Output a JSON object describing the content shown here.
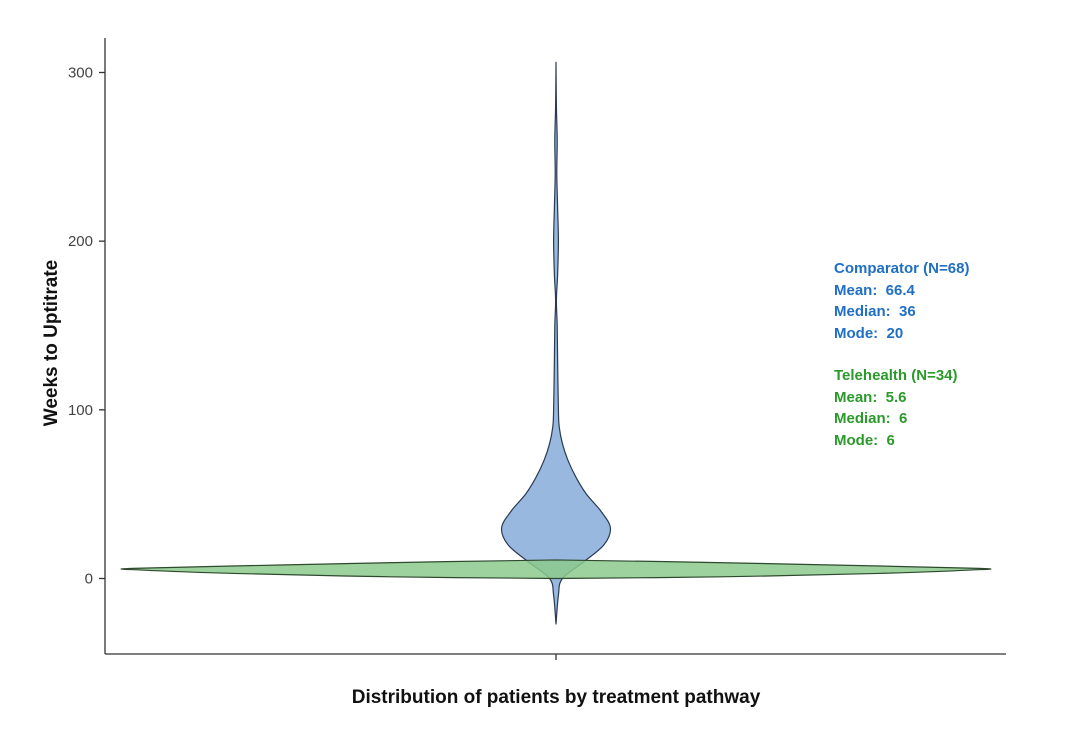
{
  "chart_data": {
    "type": "violin",
    "xlabel": "Distribution of patients by treatment pathway",
    "ylabel": "Weeks to Uptitrate",
    "ylim": [
      -40,
      325
    ],
    "yticks": [
      0,
      100,
      200,
      300
    ],
    "grid": false,
    "series": [
      {
        "name": "Comparator",
        "n": 68,
        "color": "#92b4dd",
        "stroke": "#2a3a52",
        "range": [
          -27,
          306
        ],
        "density_profile": [
          {
            "y": -27,
            "w": 0.0
          },
          {
            "y": -10,
            "w": 0.3
          },
          {
            "y": 0,
            "w": 0.8
          },
          {
            "y": 10,
            "w": 3.5
          },
          {
            "y": 20,
            "w": 6.0
          },
          {
            "y": 30,
            "w": 6.8
          },
          {
            "y": 40,
            "w": 5.6
          },
          {
            "y": 50,
            "w": 3.8
          },
          {
            "y": 60,
            "w": 2.5
          },
          {
            "y": 70,
            "w": 1.5
          },
          {
            "y": 80,
            "w": 0.8
          },
          {
            "y": 90,
            "w": 0.4
          },
          {
            "y": 100,
            "w": 0.3
          },
          {
            "y": 130,
            "w": 0.2
          },
          {
            "y": 150,
            "w": 0.15
          },
          {
            "y": 165,
            "w": 0.05
          },
          {
            "y": 180,
            "w": 0.2
          },
          {
            "y": 200,
            "w": 0.3
          },
          {
            "y": 220,
            "w": 0.2
          },
          {
            "y": 240,
            "w": 0.1
          },
          {
            "y": 260,
            "w": 0.15
          },
          {
            "y": 280,
            "w": 0.05
          },
          {
            "y": 306,
            "w": 0.0
          }
        ],
        "stats_title": "Comparator (N=68)",
        "mean_label": "Mean:  66.4",
        "median_label": "Median:  36",
        "mode_label": "Mode:  20",
        "mean": 66.4,
        "median": 36,
        "mode": 20
      },
      {
        "name": "Telehealth",
        "n": 34,
        "color": "#8cc98c",
        "stroke": "#2e4a2e",
        "range": [
          0,
          11
        ],
        "density_profile": [
          {
            "y": 0,
            "w": 0.0
          },
          {
            "y": 1,
            "w": 1.8
          },
          {
            "y": 3,
            "w": 3.5
          },
          {
            "y": 5,
            "w": 4.5
          },
          {
            "y": 6,
            "w": 4.6
          },
          {
            "y": 8,
            "w": 3.0
          },
          {
            "y": 10,
            "w": 1.2
          },
          {
            "y": 11,
            "w": 0.0
          }
        ],
        "stats_title": "Telehealth (N=34)",
        "mean_label": "Mean:  5.6",
        "median_label": "Median:  6",
        "mode_label": "Mode:  6",
        "mean": 5.6,
        "median": 6,
        "mode": 6
      }
    ]
  },
  "colors": {
    "comparator_text": "#1f6fc4",
    "telehealth_text": "#2a9a2a",
    "axis": "#333333"
  }
}
